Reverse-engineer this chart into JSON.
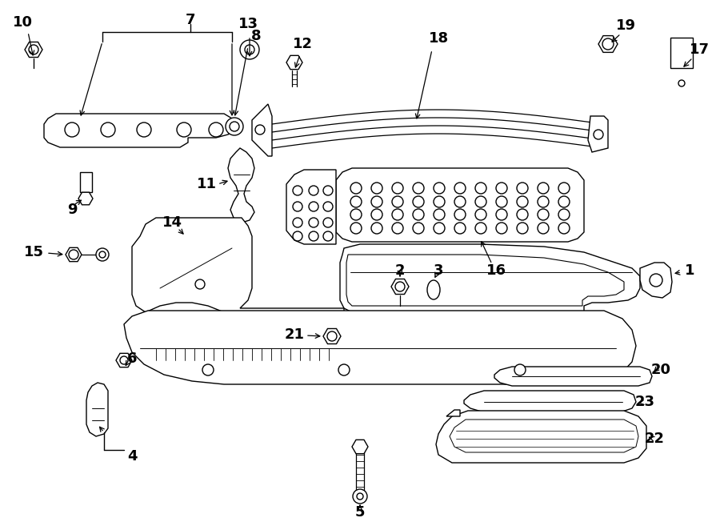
{
  "background_color": "#ffffff",
  "line_color": "#000000",
  "fig_width": 9.0,
  "fig_height": 6.62,
  "dpi": 100
}
